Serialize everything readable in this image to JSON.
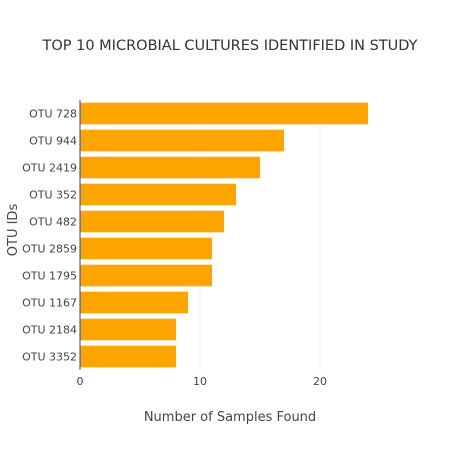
{
  "chart_data": {
    "type": "bar",
    "orientation": "horizontal",
    "title": "TOP 10 MICROBIAL CULTURES IDENTIFIED IN STUDY",
    "xlabel": "Number of Samples Found",
    "ylabel": "OTU IDs",
    "categories": [
      "OTU 728",
      "OTU 944",
      "OTU 2419",
      "OTU 352",
      "OTU 482",
      "OTU 2859",
      "OTU 1795",
      "OTU 1167",
      "OTU 2184",
      "OTU 3352"
    ],
    "values": [
      24,
      17,
      15,
      13,
      12,
      11,
      11,
      9,
      8,
      8
    ],
    "xlim": [
      0,
      25
    ],
    "xticks": [
      0,
      10,
      20
    ],
    "grid": true,
    "bar_color": "#ffa500"
  }
}
